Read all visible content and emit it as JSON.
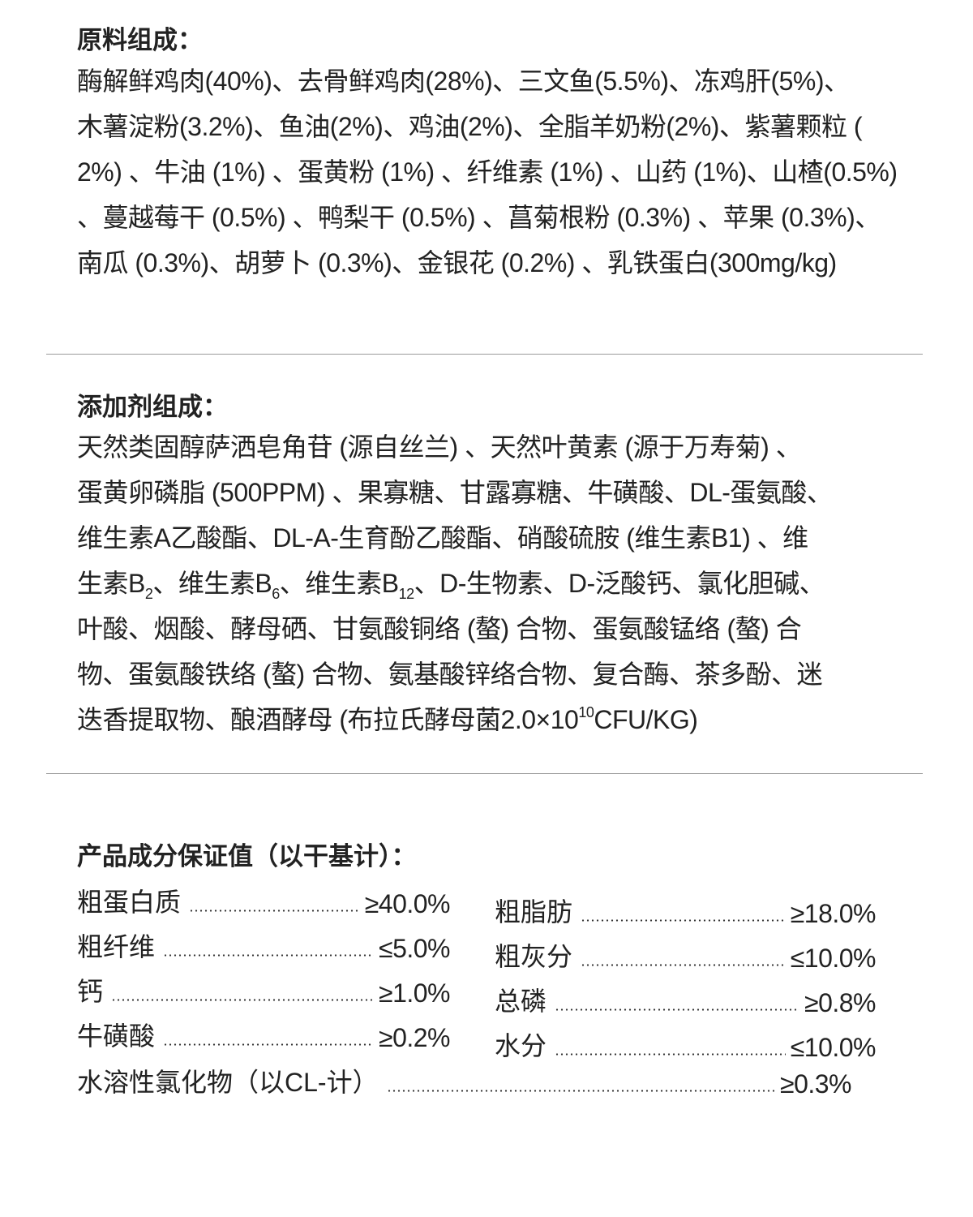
{
  "raw_materials": {
    "title": "原料组成：",
    "lines": [
      "酶解鲜鸡肉(40%)、去骨鲜鸡肉(28%)、三文鱼(5.5%)、冻鸡肝(5%)、",
      "木薯淀粉(3.2%)、鱼油(2%)、鸡油(2%)、全脂羊奶粉(2%)、紫薯颗粒 (",
      "2%) 、牛油 (1%) 、蛋黄粉 (1%) 、纤维素 (1%) 、山药 (1%)、山楂(0.5%)",
      "、蔓越莓干 (0.5%) 、鸭梨干 (0.5%) 、菖菊根粉 (0.3%) 、苹果 (0.3%)、",
      "南瓜 (0.3%)、胡萝卜 (0.3%)、金银花 (0.2%) 、乳铁蛋白(300mg/kg)"
    ]
  },
  "additives": {
    "title": "添加剂组成：",
    "lines": [
      [
        {
          "t": "天然类固醇萨洒皂角苷 (源自丝兰) 、天然叶黄素 (源于万寿菊) 、"
        }
      ],
      [
        {
          "t": "蛋黄卵磷脂 (500PPM) 、果寡糖、甘露寡糖、牛磺酸、DL-蛋氨酸、"
        }
      ],
      [
        {
          "t": "维生素A乙酸酯、DL-A-生育酚乙酸酯、硝酸硫胺 (维生素B1) 、维"
        }
      ],
      [
        {
          "t": "生素B"
        },
        {
          "sub": "2"
        },
        {
          "t": "、维生素B"
        },
        {
          "sub": "6"
        },
        {
          "t": "、维生素B"
        },
        {
          "sub": "12"
        },
        {
          "t": "、D-生物素、D-泛酸钙、氯化胆碱、"
        }
      ],
      [
        {
          "t": "叶酸、烟酸、酵母硒、甘氨酸铜络 (螯) 合物、蛋氨酸锰络 (螯) 合"
        }
      ],
      [
        {
          "t": "物、蛋氨酸铁络 (螯) 合物、氨基酸锌络合物、复合酶、茶多酚、迷"
        }
      ],
      [
        {
          "t": "迭香提取物、酿酒酵母 (布拉氏酵母菌2.0×10"
        },
        {
          "sup": "10"
        },
        {
          "t": "CFU/KG)"
        }
      ]
    ]
  },
  "guarantee": {
    "title": "产品成分保证值（以干基计）：",
    "left": [
      {
        "label": "粗蛋白质",
        "value": "≥40.0%"
      },
      {
        "label": "粗纤维",
        "value": "≤5.0%"
      },
      {
        "label": "钙",
        "value": "≥1.0%"
      },
      {
        "label": "牛磺酸",
        "value": "≥0.2%"
      }
    ],
    "right": [
      {
        "label": "粗脂肪",
        "value": "≥18.0%"
      },
      {
        "label": "粗灰分",
        "value": "≤10.0%"
      },
      {
        "label": "总磷",
        "value": "≥0.8%"
      },
      {
        "label": "水分",
        "value": "≤10.0%"
      }
    ],
    "full": {
      "label": "水溶性氯化物（以CL-计）",
      "value": "≥0.3%"
    }
  }
}
